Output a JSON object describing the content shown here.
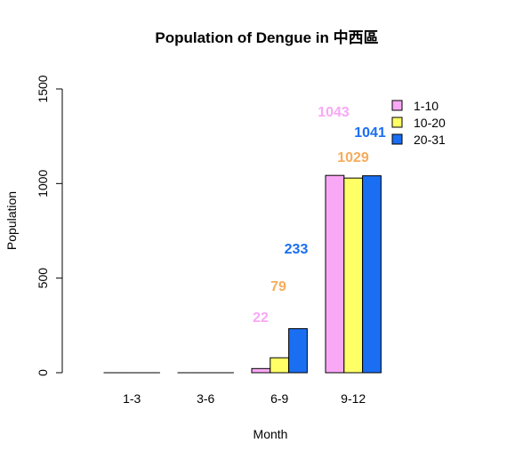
{
  "chart_data": {
    "type": "bar",
    "title": "Population of Dengue in  中西區",
    "xlabel": "Month",
    "ylabel": "Population",
    "categories": [
      "1-3",
      "3-6",
      "6-9",
      "9-12"
    ],
    "ylim": [
      0,
      1500
    ],
    "yticks": [
      "0",
      "500",
      "1000",
      "1500"
    ],
    "grid": false,
    "legend_position": "top-right",
    "series": [
      {
        "name": "1-10",
        "color": "#f9a8f5",
        "values": [
          0,
          0,
          22,
          1043
        ]
      },
      {
        "name": "10-20",
        "color": "#ffff66",
        "values": [
          0,
          0,
          79,
          1029
        ]
      },
      {
        "name": "20-31",
        "color": "#1a6ef2",
        "values": [
          0,
          0,
          233,
          1041
        ]
      }
    ],
    "data_labels": [
      {
        "series": 0,
        "category": 2,
        "text": "22",
        "color": "#f9a8f5"
      },
      {
        "series": 1,
        "category": 2,
        "text": "79",
        "color": "#f6ac5c"
      },
      {
        "series": 2,
        "category": 2,
        "text": "233",
        "color": "#1a6ef2"
      },
      {
        "series": 0,
        "category": 3,
        "text": "1043",
        "color": "#f9a8f5"
      },
      {
        "series": 1,
        "category": 3,
        "text": "1029",
        "color": "#f6ac5c"
      },
      {
        "series": 2,
        "category": 3,
        "text": "1041",
        "color": "#1a6ef2"
      }
    ]
  }
}
